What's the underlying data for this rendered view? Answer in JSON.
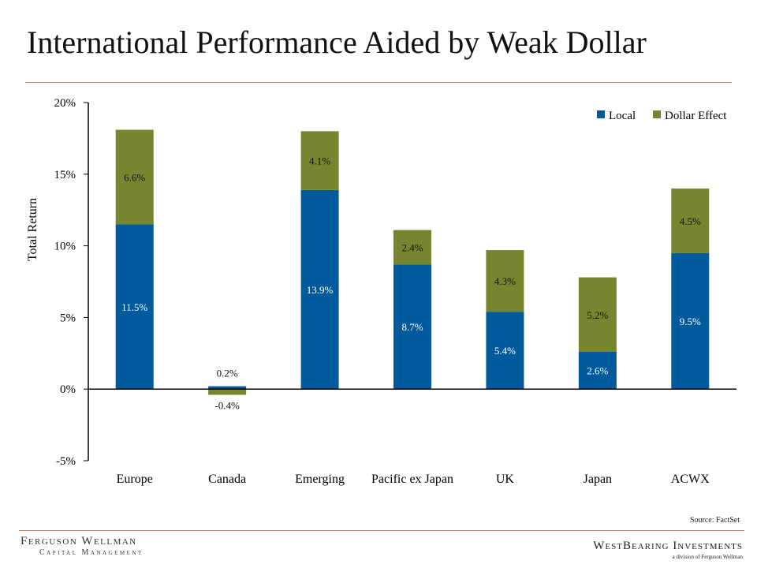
{
  "slide": {
    "title": "International Performance Aided by Weak Dollar",
    "source": "Source: FactSet"
  },
  "branding": {
    "left_name": "Ferguson Wellman",
    "left_sub": "Capital Management",
    "right_name": "WestBearing Investments",
    "right_sub": "a division of Ferguson Wellman"
  },
  "colors": {
    "local": "#005a9c",
    "dollar_effect": "#76862f",
    "rule": "#b08a6e"
  },
  "chart_data": {
    "type": "bar",
    "stacked": true,
    "categories": [
      "Europe",
      "Canada",
      "Emerging",
      "Pacific ex Japan",
      "UK",
      "Japan",
      "ACWX"
    ],
    "series": [
      {
        "name": "Local",
        "values": [
          11.5,
          0.2,
          13.9,
          8.7,
          5.4,
          2.6,
          9.5
        ],
        "labels": [
          "11.5%",
          "0.2%",
          "13.9%",
          "8.7%",
          "5.4%",
          "2.6%",
          "9.5%"
        ]
      },
      {
        "name": "Dollar Effect",
        "values": [
          6.6,
          -0.4,
          4.1,
          2.4,
          4.3,
          5.2,
          4.5
        ],
        "labels": [
          "6.6%",
          "-0.4%",
          "4.1%",
          "2.4%",
          "4.3%",
          "5.2%",
          "4.5%"
        ]
      }
    ],
    "ylabel": "Total Return",
    "xlabel": "",
    "ylim": [
      -5,
      20
    ],
    "yticks": [
      -5,
      0,
      5,
      10,
      15,
      20
    ],
    "ytick_labels": [
      "-5%",
      "0%",
      "5%",
      "10%",
      "15%",
      "20%"
    ],
    "legend_position": "top-right",
    "grid": false
  }
}
